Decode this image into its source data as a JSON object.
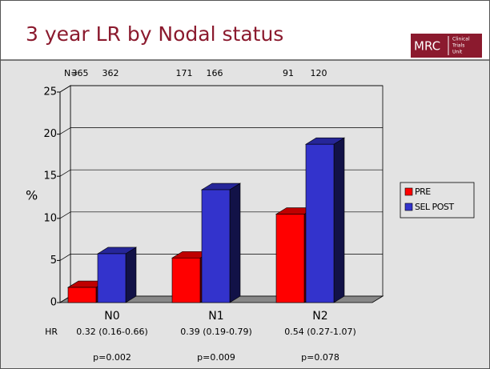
{
  "header": {
    "logo": {
      "name": "MRC",
      "lines": [
        "Clinical",
        "Trials",
        "Unit"
      ]
    }
  },
  "chart_data": {
    "type": "bar3d",
    "title": "3 year LR by Nodal status",
    "categories": [
      "N0",
      "N1",
      "N2"
    ],
    "series": [
      {
        "name": "PRE",
        "color": "#ff0000",
        "values": [
          1.8,
          5.3,
          10.5
        ]
      },
      {
        "name": "SEL POST",
        "color": "#3333cc",
        "values": [
          5.8,
          13.4,
          18.8
        ]
      }
    ],
    "ylim": [
      0,
      25
    ],
    "yticks": [
      0,
      5,
      10,
      15,
      20,
      25
    ],
    "y_label": "%",
    "grid": true,
    "legend": "right",
    "n_label": "N=",
    "n_counts": [
      [
        365,
        362
      ],
      [
        171,
        166
      ],
      [
        91,
        120
      ]
    ],
    "hr_label": "HR",
    "hr": [
      "0.32 (0.16-0.66)",
      "0.39 (0.19-0.79)",
      "0.54 (0.27-1.07)"
    ],
    "p_values": [
      "p=0.002",
      "p=0.009",
      "p=0.078"
    ]
  }
}
